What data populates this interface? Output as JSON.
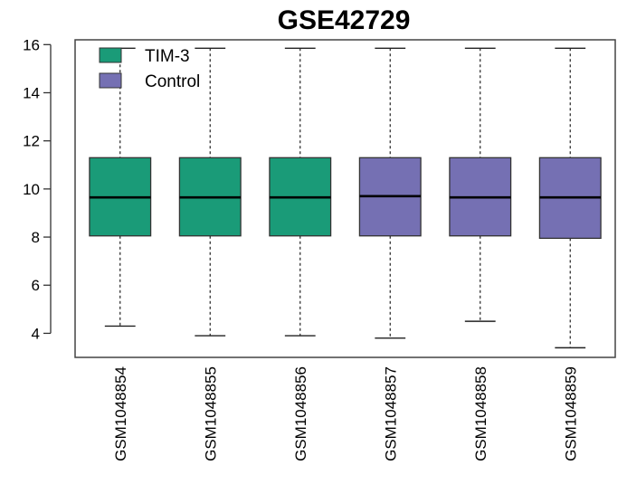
{
  "chart_data": {
    "type": "boxplot",
    "title": "GSE42729",
    "xlabel": "",
    "ylabel": "",
    "ylim": [
      3,
      16.2
    ],
    "yticks": [
      4,
      6,
      8,
      10,
      12,
      14,
      16
    ],
    "grid": false,
    "legend_position": "top-left",
    "groups": [
      {
        "name": "TIM-3",
        "color": "#1a9b78"
      },
      {
        "name": "Control",
        "color": "#7570b3"
      }
    ],
    "categories": [
      "GSM1048854",
      "GSM1048855",
      "GSM1048856",
      "GSM1048857",
      "GSM1048858",
      "GSM1048859"
    ],
    "series": [
      {
        "category": "GSM1048854",
        "group": "TIM-3",
        "min": 4.3,
        "q1": 8.05,
        "median": 9.65,
        "q3": 11.3,
        "max": 15.85
      },
      {
        "category": "GSM1048855",
        "group": "TIM-3",
        "min": 3.9,
        "q1": 8.05,
        "median": 9.65,
        "q3": 11.3,
        "max": 15.85
      },
      {
        "category": "GSM1048856",
        "group": "TIM-3",
        "min": 3.9,
        "q1": 8.05,
        "median": 9.65,
        "q3": 11.3,
        "max": 15.85
      },
      {
        "category": "GSM1048857",
        "group": "Control",
        "min": 3.8,
        "q1": 8.05,
        "median": 9.7,
        "q3": 11.3,
        "max": 15.85
      },
      {
        "category": "GSM1048858",
        "group": "Control",
        "min": 4.5,
        "q1": 8.05,
        "median": 9.65,
        "q3": 11.3,
        "max": 15.85
      },
      {
        "category": "GSM1048859",
        "group": "Control",
        "min": 3.4,
        "q1": 7.95,
        "median": 9.65,
        "q3": 11.3,
        "max": 15.85
      }
    ]
  }
}
